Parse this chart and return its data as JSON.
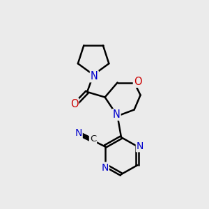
{
  "background_color": "#ebebeb",
  "bond_color": "#000000",
  "bond_width": 1.8,
  "atom_colors": {
    "N": "#0000cc",
    "O": "#cc0000",
    "C": "#1a1a1a"
  },
  "figsize": [
    3.0,
    3.0
  ],
  "dpi": 100
}
